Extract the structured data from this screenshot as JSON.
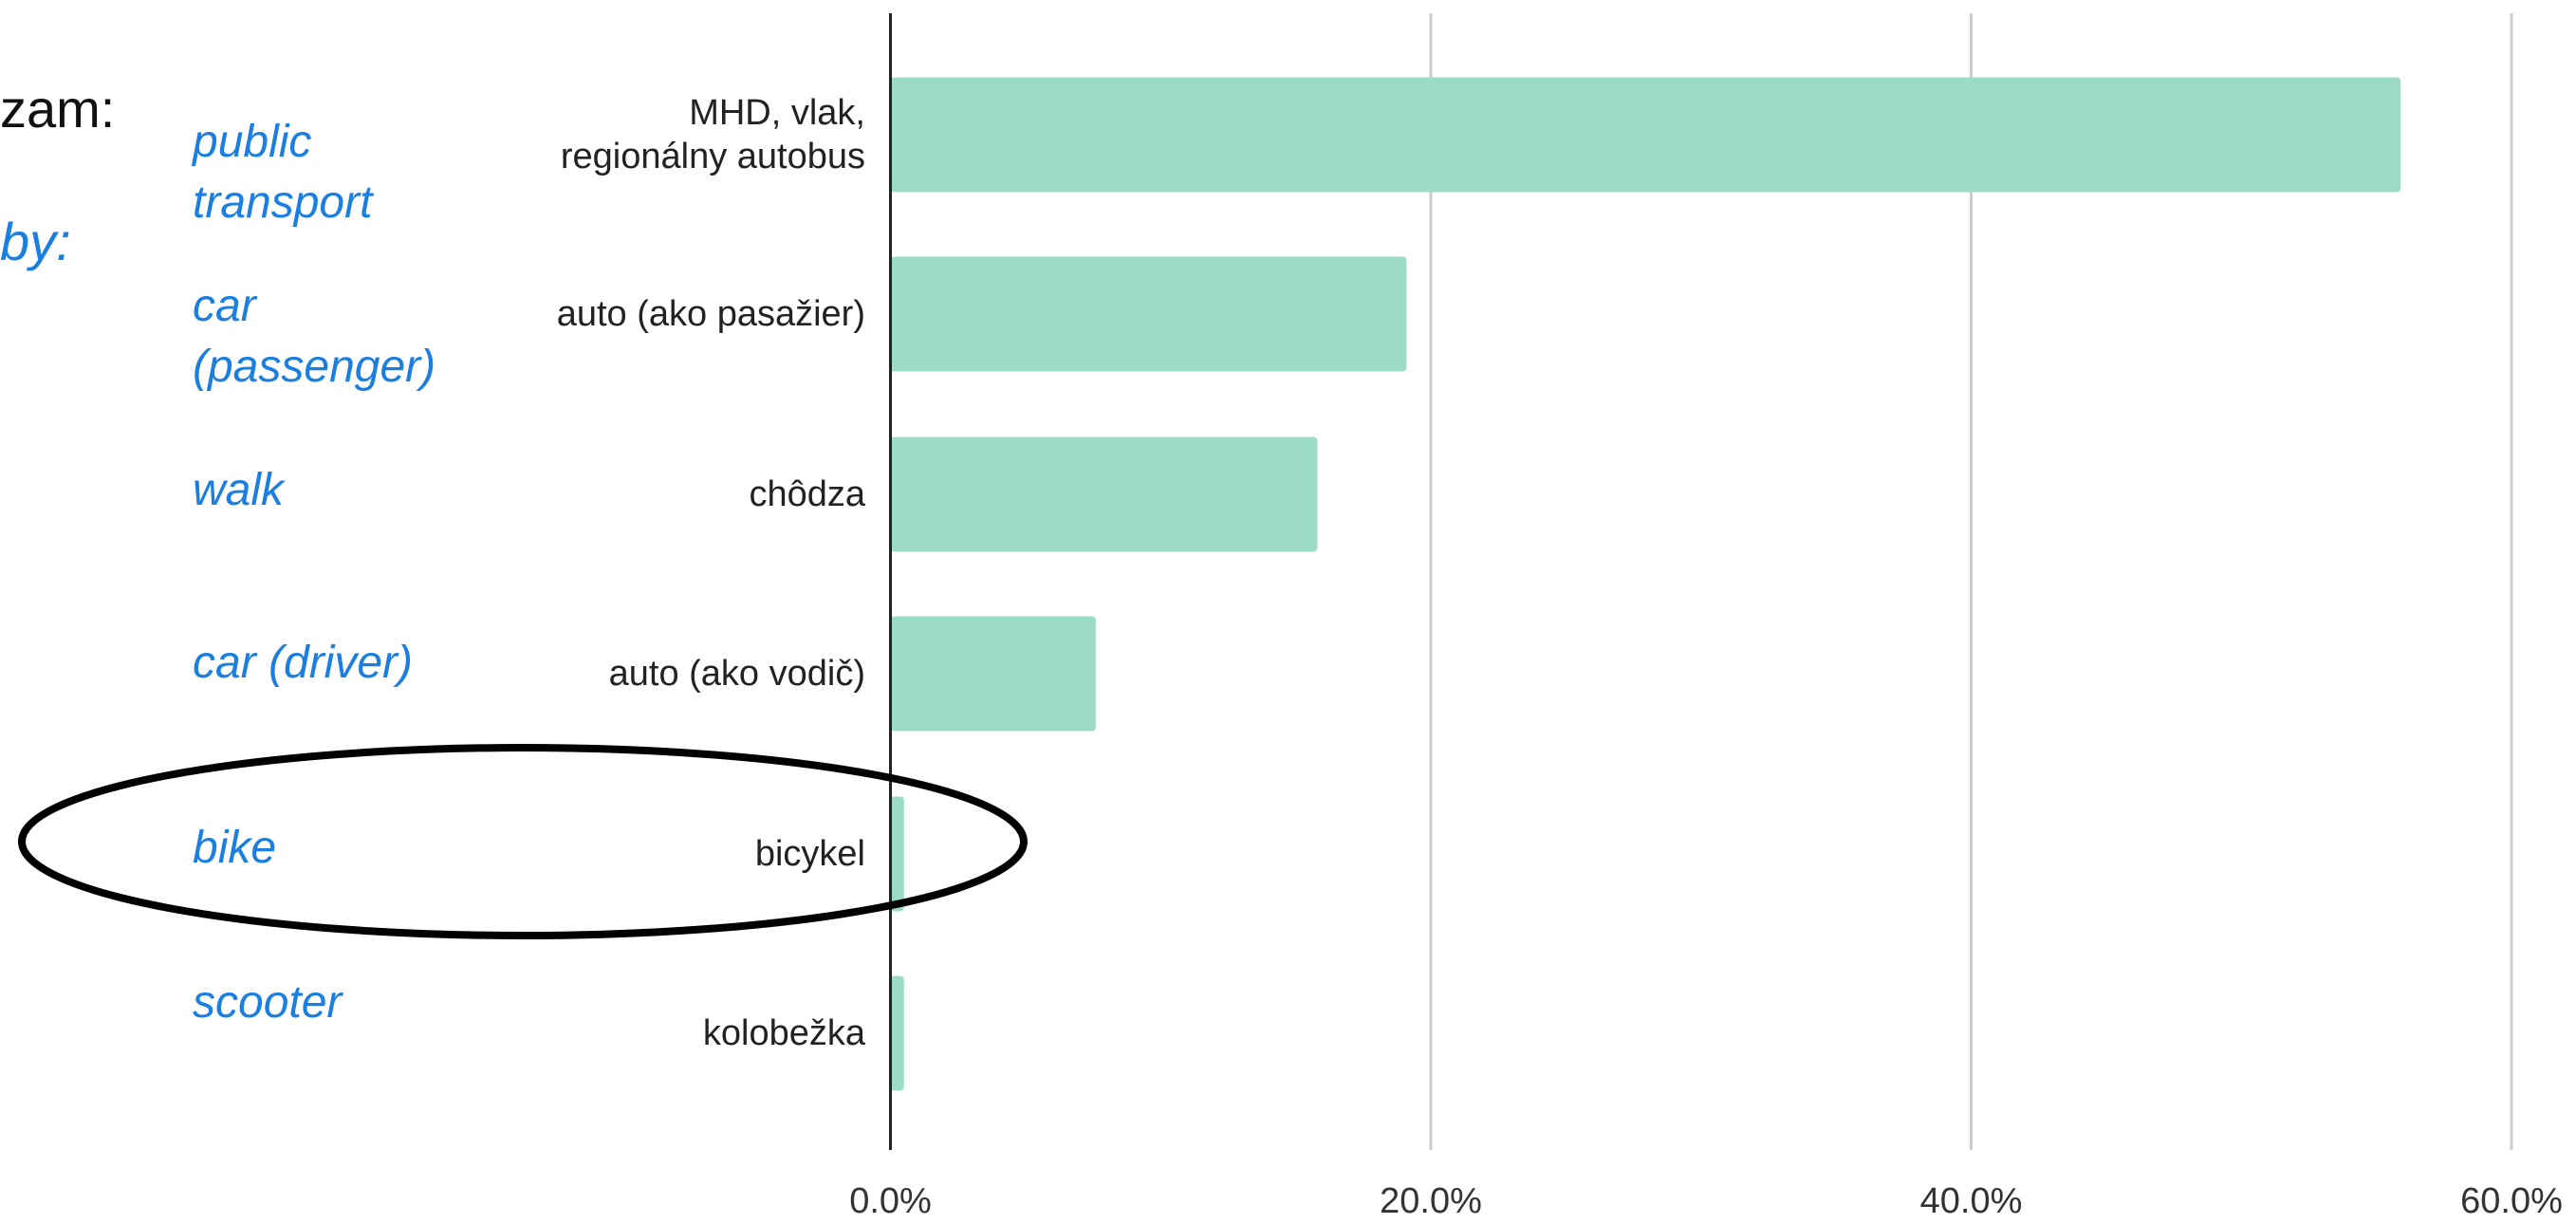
{
  "chart_data": {
    "type": "bar",
    "orientation": "horizontal",
    "categories": [
      "MHD, vlak,\nregionálny autobus",
      "auto (ako pasažier)",
      "chôdza",
      "auto (ako vodič)",
      "bicykel",
      "kolobežka"
    ],
    "translations": [
      "public\ntransport",
      "car\n(passenger)",
      "walk",
      "car (driver)",
      "bike",
      "scooter"
    ],
    "values": [
      55.9,
      19.1,
      15.8,
      7.6,
      0.5,
      0.5
    ],
    "color": "#9ddcc4",
    "xlim": [
      0,
      60
    ],
    "xticks": [
      {
        "value": 0,
        "label": "0.0%"
      },
      {
        "value": 20,
        "label": "20.0%"
      },
      {
        "value": 40,
        "label": "40.0%"
      },
      {
        "value": 60,
        "label": "60.0%"
      }
    ],
    "grid": true,
    "annotations": [
      "zam:",
      "by:"
    ]
  }
}
